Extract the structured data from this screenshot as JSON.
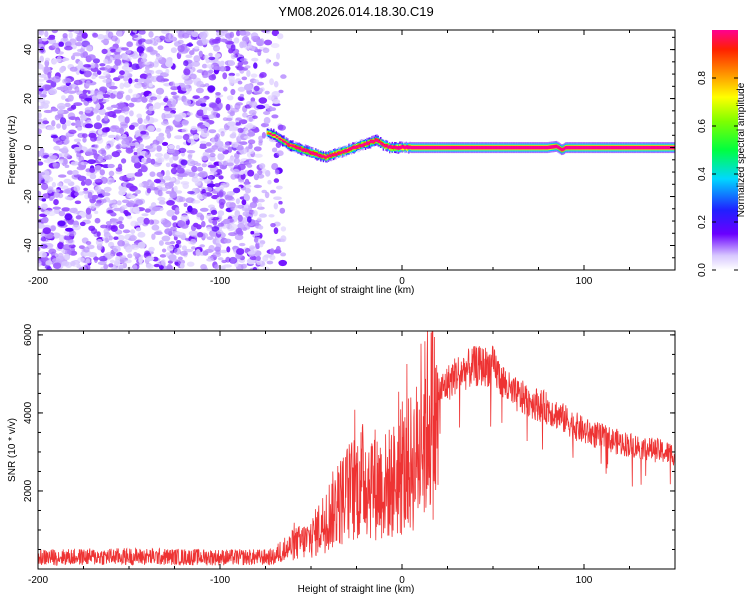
{
  "title": "YM08.2026.014.18.30.C19",
  "chart_data": [
    {
      "type": "heatmap",
      "name": "spectrogram",
      "xlabel": "Height of straight line (km)",
      "ylabel": "Frequency (Hz)",
      "xlim": [
        -200,
        150
      ],
      "ylim": [
        -50,
        48
      ],
      "xticks": [
        -200,
        -100,
        0,
        100
      ],
      "yticks": [
        -40,
        -20,
        0,
        20,
        40
      ],
      "colorbar": {
        "label": "Normalized spectral amplitude",
        "range": [
          0,
          1
        ],
        "ticks": [
          0.0,
          0.2,
          0.4,
          0.6,
          0.8
        ]
      },
      "noise_region_x": [
        -200,
        -65
      ],
      "ridge": {
        "x": [
          -74,
          -70,
          -66,
          -62,
          -58,
          -54,
          -50,
          -46,
          -42,
          -38,
          -34,
          -30,
          -26,
          -22,
          -18,
          -14,
          -10,
          -6,
          -2,
          2,
          10,
          20,
          40,
          60,
          80,
          85,
          88,
          90,
          100,
          120,
          150
        ],
        "y": [
          6,
          5,
          3,
          1,
          0,
          -1,
          -2,
          -3,
          -4,
          -3,
          -2,
          -1,
          0,
          1,
          2,
          3,
          1,
          0,
          0,
          0,
          0,
          0,
          0,
          0,
          0,
          0.5,
          -1,
          0,
          0,
          0,
          0
        ],
        "amplitude": [
          0.45,
          0.55,
          0.6,
          0.7,
          0.75,
          0.8,
          0.8,
          0.85,
          0.8,
          0.85,
          0.8,
          0.85,
          0.85,
          0.8,
          0.85,
          0.8,
          0.85,
          0.9,
          0.95,
          0.98,
          0.98,
          0.98,
          0.98,
          0.98,
          0.98,
          0.9,
          0.85,
          0.95,
          0.98,
          0.98,
          0.98
        ]
      }
    },
    {
      "type": "line",
      "name": "snr",
      "xlabel": "Height of straight line (km)",
      "ylabel": "SNR (10 * v/v)",
      "xlim": [
        -200,
        150
      ],
      "ylim": [
        0,
        6100
      ],
      "xticks": [
        -200,
        -100,
        0,
        100
      ],
      "yticks": [
        2000,
        4000,
        6000
      ],
      "color": "#ee3333",
      "envelope": {
        "x": [
          -200,
          -150,
          -100,
          -70,
          -60,
          -50,
          -40,
          -30,
          -20,
          -10,
          0,
          10,
          15,
          20,
          30,
          40,
          50,
          60,
          70,
          80,
          100,
          120,
          150
        ],
        "y": [
          300,
          320,
          300,
          300,
          800,
          1000,
          1800,
          2500,
          3000,
          2700,
          3100,
          3900,
          5200,
          4600,
          5100,
          5300,
          5300,
          4600,
          4400,
          4200,
          3600,
          3300,
          3000
        ]
      }
    }
  ]
}
